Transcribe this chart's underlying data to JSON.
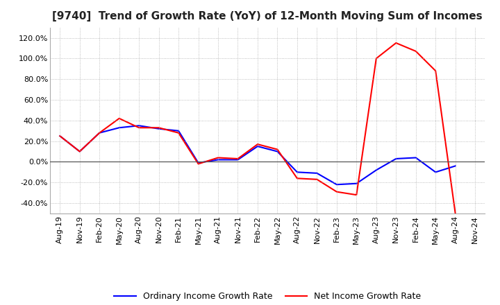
{
  "title": "[9740]  Trend of Growth Rate (YoY) of 12-Month Moving Sum of Incomes",
  "x_labels": [
    "Aug-19",
    "Nov-19",
    "Feb-20",
    "May-20",
    "Aug-20",
    "Nov-20",
    "Feb-21",
    "May-21",
    "Aug-21",
    "Nov-21",
    "Feb-22",
    "May-22",
    "Aug-22",
    "Nov-22",
    "Feb-23",
    "May-23",
    "Aug-23",
    "Nov-23",
    "Feb-24",
    "May-24",
    "Aug-24",
    "Nov-24"
  ],
  "ordinary_income": [
    25,
    10,
    28,
    33,
    35,
    32,
    30,
    -1,
    2,
    2,
    15,
    10,
    -10,
    -11,
    -22,
    -21,
    -8,
    3,
    4,
    -10,
    -4,
    null
  ],
  "net_income": [
    25,
    10,
    28,
    42,
    33,
    33,
    28,
    -2,
    4,
    3,
    17,
    12,
    -16,
    -17,
    -29,
    -32,
    100,
    115,
    107,
    88,
    -50,
    null
  ],
  "ylim": [
    -50,
    130
  ],
  "yticks": [
    -40,
    -20,
    0,
    20,
    40,
    60,
    80,
    100,
    120
  ],
  "ordinary_color": "#0000FF",
  "net_color": "#FF0000",
  "background_color": "#FFFFFF",
  "grid_color": "#AAAAAA",
  "zero_line_color": "#555555",
  "legend_ordinary": "Ordinary Income Growth Rate",
  "legend_net": "Net Income Growth Rate",
  "title_fontsize": 11,
  "tick_fontsize": 8,
  "legend_fontsize": 9
}
